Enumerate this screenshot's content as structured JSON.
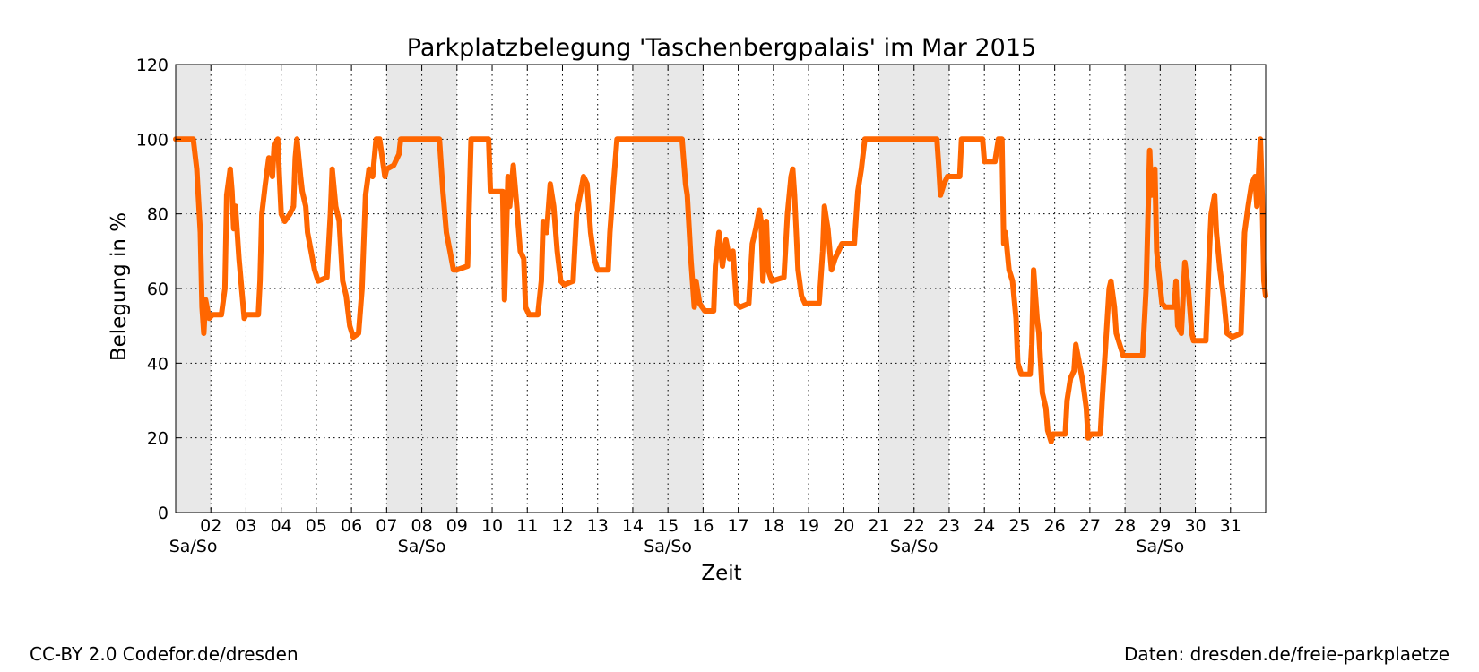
{
  "footer": {
    "left": "CC-BY 2.0 Codefor.de/dresden",
    "right": "Daten: dresden.de/freie-parkplaetze"
  },
  "colors": {
    "line": "#ff6600",
    "weekend_shade": "#e8e8e8",
    "grid": "#000000"
  },
  "chart_data": {
    "type": "line",
    "title": "Parkplatzbelegung 'Taschenbergpalais' im Mar 2015",
    "xlabel": "Zeit",
    "ylabel": "Belegung in %",
    "xlim": [
      1,
      32
    ],
    "ylim": [
      0,
      120
    ],
    "y_ticks": [
      0,
      20,
      40,
      60,
      80,
      100,
      120
    ],
    "x_ticks": [
      2,
      3,
      4,
      5,
      6,
      7,
      8,
      9,
      10,
      11,
      12,
      13,
      14,
      15,
      16,
      17,
      18,
      19,
      20,
      21,
      22,
      23,
      24,
      25,
      26,
      27,
      28,
      29,
      30,
      31
    ],
    "x_tick_labels": [
      "02",
      "03",
      "04",
      "05",
      "06",
      "07",
      "08",
      "09",
      "10",
      "11",
      "12",
      "13",
      "14",
      "15",
      "16",
      "17",
      "18",
      "19",
      "20",
      "21",
      "22",
      "23",
      "24",
      "25",
      "26",
      "27",
      "28",
      "29",
      "30",
      "31"
    ],
    "grid": true,
    "weekend_label": "Sa/So",
    "weekends": [
      [
        1,
        2
      ],
      [
        7,
        9
      ],
      [
        14,
        16
      ],
      [
        21,
        23
      ],
      [
        28,
        30
      ]
    ],
    "series": [
      {
        "values": [
          [
            1.0,
            100
          ],
          [
            1.5,
            100
          ],
          [
            1.6,
            92
          ],
          [
            1.7,
            75
          ],
          [
            1.75,
            55
          ],
          [
            1.8,
            48
          ],
          [
            1.85,
            57
          ],
          [
            1.95,
            52
          ],
          [
            2.05,
            53
          ],
          [
            2.3,
            53
          ],
          [
            2.4,
            60
          ],
          [
            2.45,
            85
          ],
          [
            2.55,
            92
          ],
          [
            2.6,
            86
          ],
          [
            2.65,
            76
          ],
          [
            2.7,
            82
          ],
          [
            2.8,
            68
          ],
          [
            2.95,
            52
          ],
          [
            3.0,
            53
          ],
          [
            3.35,
            53
          ],
          [
            3.4,
            62
          ],
          [
            3.45,
            80
          ],
          [
            3.55,
            88
          ],
          [
            3.65,
            95
          ],
          [
            3.75,
            90
          ],
          [
            3.8,
            98
          ],
          [
            3.9,
            100
          ],
          [
            3.95,
            90
          ],
          [
            4.0,
            80
          ],
          [
            4.1,
            78
          ],
          [
            4.25,
            80
          ],
          [
            4.35,
            82
          ],
          [
            4.4,
            95
          ],
          [
            4.45,
            100
          ],
          [
            4.55,
            90
          ],
          [
            4.6,
            86
          ],
          [
            4.7,
            82
          ],
          [
            4.75,
            75
          ],
          [
            4.85,
            70
          ],
          [
            4.95,
            65
          ],
          [
            5.05,
            62
          ],
          [
            5.3,
            63
          ],
          [
            5.4,
            80
          ],
          [
            5.45,
            92
          ],
          [
            5.55,
            82
          ],
          [
            5.65,
            78
          ],
          [
            5.75,
            62
          ],
          [
            5.85,
            58
          ],
          [
            5.95,
            50
          ],
          [
            6.05,
            47
          ],
          [
            6.2,
            48
          ],
          [
            6.3,
            60
          ],
          [
            6.4,
            85
          ],
          [
            6.5,
            92
          ],
          [
            6.6,
            90
          ],
          [
            6.7,
            100
          ],
          [
            6.8,
            100
          ],
          [
            6.95,
            90
          ],
          [
            7.0,
            92
          ],
          [
            7.2,
            93
          ],
          [
            7.35,
            96
          ],
          [
            7.4,
            100
          ],
          [
            8.1,
            100
          ],
          [
            8.5,
            100
          ],
          [
            8.6,
            86
          ],
          [
            8.7,
            75
          ],
          [
            8.8,
            70
          ],
          [
            8.9,
            65
          ],
          [
            9.0,
            65
          ],
          [
            9.3,
            66
          ],
          [
            9.4,
            100
          ],
          [
            9.9,
            100
          ],
          [
            9.95,
            86
          ],
          [
            10.05,
            86
          ],
          [
            10.3,
            86
          ],
          [
            10.35,
            57
          ],
          [
            10.45,
            90
          ],
          [
            10.5,
            82
          ],
          [
            10.6,
            93
          ],
          [
            10.7,
            82
          ],
          [
            10.8,
            70
          ],
          [
            10.9,
            68
          ],
          [
            10.95,
            55
          ],
          [
            11.05,
            53
          ],
          [
            11.3,
            53
          ],
          [
            11.4,
            62
          ],
          [
            11.45,
            78
          ],
          [
            11.55,
            75
          ],
          [
            11.65,
            88
          ],
          [
            11.75,
            82
          ],
          [
            11.85,
            70
          ],
          [
            11.95,
            62
          ],
          [
            12.05,
            61
          ],
          [
            12.3,
            62
          ],
          [
            12.4,
            80
          ],
          [
            12.5,
            85
          ],
          [
            12.6,
            90
          ],
          [
            12.7,
            88
          ],
          [
            12.8,
            75
          ],
          [
            12.9,
            68
          ],
          [
            13.0,
            65
          ],
          [
            13.3,
            65
          ],
          [
            13.35,
            75
          ],
          [
            13.45,
            88
          ],
          [
            13.55,
            100
          ],
          [
            15.4,
            100
          ],
          [
            15.5,
            88
          ],
          [
            15.55,
            85
          ],
          [
            15.65,
            68
          ],
          [
            15.75,
            55
          ],
          [
            15.8,
            62
          ],
          [
            15.9,
            56
          ],
          [
            16.05,
            54
          ],
          [
            16.3,
            54
          ],
          [
            16.35,
            66
          ],
          [
            16.45,
            75
          ],
          [
            16.55,
            66
          ],
          [
            16.65,
            73
          ],
          [
            16.75,
            68
          ],
          [
            16.85,
            70
          ],
          [
            16.95,
            56
          ],
          [
            17.05,
            55
          ],
          [
            17.3,
            56
          ],
          [
            17.4,
            72
          ],
          [
            17.5,
            76
          ],
          [
            17.6,
            81
          ],
          [
            17.65,
            78
          ],
          [
            17.7,
            62
          ],
          [
            17.8,
            78
          ],
          [
            17.85,
            65
          ],
          [
            17.95,
            62
          ],
          [
            18.3,
            63
          ],
          [
            18.4,
            80
          ],
          [
            18.5,
            90
          ],
          [
            18.55,
            92
          ],
          [
            18.6,
            85
          ],
          [
            18.7,
            65
          ],
          [
            18.8,
            58
          ],
          [
            18.9,
            56
          ],
          [
            19.3,
            56
          ],
          [
            19.4,
            70
          ],
          [
            19.45,
            82
          ],
          [
            19.55,
            76
          ],
          [
            19.65,
            65
          ],
          [
            19.75,
            68
          ],
          [
            19.85,
            70
          ],
          [
            19.95,
            72
          ],
          [
            20.3,
            72
          ],
          [
            20.4,
            86
          ],
          [
            20.5,
            92
          ],
          [
            20.6,
            100
          ],
          [
            22.65,
            100
          ],
          [
            22.7,
            93
          ],
          [
            22.75,
            85
          ],
          [
            22.85,
            88
          ],
          [
            22.95,
            90
          ],
          [
            23.3,
            90
          ],
          [
            23.35,
            100
          ],
          [
            23.95,
            100
          ],
          [
            24.0,
            94
          ],
          [
            24.3,
            94
          ],
          [
            24.4,
            100
          ],
          [
            24.5,
            100
          ],
          [
            24.55,
            72
          ],
          [
            24.6,
            75
          ],
          [
            24.7,
            65
          ],
          [
            24.8,
            62
          ],
          [
            24.9,
            52
          ],
          [
            24.95,
            40
          ],
          [
            25.05,
            37
          ],
          [
            25.3,
            37
          ],
          [
            25.35,
            45
          ],
          [
            25.4,
            65
          ],
          [
            25.5,
            52
          ],
          [
            25.55,
            48
          ],
          [
            25.65,
            32
          ],
          [
            25.75,
            28
          ],
          [
            25.8,
            22
          ],
          [
            25.9,
            19
          ],
          [
            25.95,
            21
          ],
          [
            26.3,
            21
          ],
          [
            26.35,
            30
          ],
          [
            26.45,
            36
          ],
          [
            26.55,
            38
          ],
          [
            26.6,
            45
          ],
          [
            26.7,
            40
          ],
          [
            26.8,
            35
          ],
          [
            26.9,
            28
          ],
          [
            26.95,
            20
          ],
          [
            27.05,
            21
          ],
          [
            27.3,
            21
          ],
          [
            27.35,
            30
          ],
          [
            27.45,
            45
          ],
          [
            27.55,
            60
          ],
          [
            27.6,
            62
          ],
          [
            27.7,
            55
          ],
          [
            27.75,
            48
          ],
          [
            27.85,
            45
          ],
          [
            27.95,
            42
          ],
          [
            28.05,
            42
          ],
          [
            28.5,
            42
          ],
          [
            28.6,
            60
          ],
          [
            28.7,
            97
          ],
          [
            28.75,
            85
          ],
          [
            28.85,
            92
          ],
          [
            28.9,
            70
          ],
          [
            28.95,
            65
          ],
          [
            29.05,
            56
          ],
          [
            29.15,
            55
          ],
          [
            29.4,
            55
          ],
          [
            29.45,
            62
          ],
          [
            29.5,
            50
          ],
          [
            29.6,
            48
          ],
          [
            29.7,
            67
          ],
          [
            29.8,
            60
          ],
          [
            29.9,
            48
          ],
          [
            29.95,
            46
          ],
          [
            30.3,
            46
          ],
          [
            30.4,
            70
          ],
          [
            30.45,
            80
          ],
          [
            30.55,
            85
          ],
          [
            30.6,
            75
          ],
          [
            30.7,
            65
          ],
          [
            30.8,
            58
          ],
          [
            30.9,
            48
          ],
          [
            31.05,
            47
          ],
          [
            31.3,
            48
          ],
          [
            31.4,
            75
          ],
          [
            31.5,
            82
          ],
          [
            31.6,
            88
          ],
          [
            31.7,
            90
          ],
          [
            31.75,
            82
          ],
          [
            31.85,
            100
          ],
          [
            31.9,
            85
          ],
          [
            31.95,
            62
          ],
          [
            32.0,
            58
          ]
        ]
      }
    ]
  }
}
